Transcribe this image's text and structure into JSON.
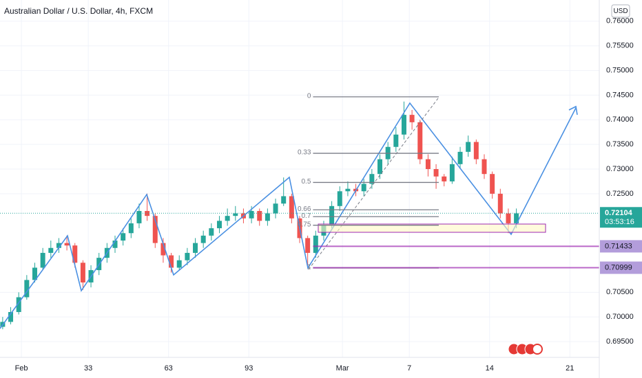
{
  "chart_data": {
    "type": "candlestick",
    "title": "Australian Dollar / U.S. Dollar, 4h, FXCM",
    "currency": "USD",
    "up_color": "#26a69a",
    "down_color": "#ef5350",
    "grid": true,
    "xlim": [
      0,
      224
    ],
    "ylim": [
      0.6918,
      0.7643
    ],
    "xticks": [
      {
        "value": 8,
        "label": "Feb"
      },
      33,
      63,
      93,
      {
        "value": 128,
        "label": "Mar"
      },
      {
        "value": 153,
        "label": "7"
      },
      {
        "value": 183,
        "label": "14"
      },
      {
        "value": 213,
        "label": "21"
      }
    ],
    "yticks": [
      {
        "value": 0.76,
        "label": "0.76000"
      },
      {
        "value": 0.755,
        "label": "0.75500"
      },
      {
        "value": 0.75,
        "label": "0.75000"
      },
      {
        "value": 0.745,
        "label": "0.74500"
      },
      {
        "value": 0.74,
        "label": "0.74000"
      },
      {
        "value": 0.735,
        "label": "0.73500"
      },
      {
        "value": 0.73,
        "label": "0.73000"
      },
      {
        "value": 0.725,
        "label": "0.72500"
      },
      {
        "value": 0.705,
        "label": "0.70500"
      },
      {
        "value": 0.7,
        "label": "0.70000"
      },
      {
        "value": 0.695,
        "label": "0.69500"
      }
    ],
    "candles": [
      [
        1,
        0.698,
        0.7,
        0.6975,
        0.699
      ],
      [
        4,
        0.699,
        0.702,
        0.6985,
        0.701
      ],
      [
        7,
        0.701,
        0.705,
        0.7005,
        0.704
      ],
      [
        10,
        0.704,
        0.7085,
        0.7035,
        0.7075
      ],
      [
        13,
        0.7075,
        0.711,
        0.707,
        0.71
      ],
      [
        16,
        0.71,
        0.714,
        0.7095,
        0.713
      ],
      [
        19,
        0.713,
        0.7155,
        0.712,
        0.714
      ],
      [
        22,
        0.714,
        0.716,
        0.713,
        0.715
      ],
      [
        25,
        0.715,
        0.7165,
        0.7135,
        0.7145
      ],
      [
        28,
        0.7145,
        0.715,
        0.71,
        0.711
      ],
      [
        31,
        0.711,
        0.7115,
        0.7055,
        0.707
      ],
      [
        34,
        0.707,
        0.7105,
        0.706,
        0.7095
      ],
      [
        37,
        0.7095,
        0.713,
        0.7085,
        0.712
      ],
      [
        40,
        0.712,
        0.715,
        0.711,
        0.714
      ],
      [
        43,
        0.714,
        0.7165,
        0.713,
        0.7155
      ],
      [
        46,
        0.7155,
        0.718,
        0.7145,
        0.717
      ],
      [
        49,
        0.717,
        0.72,
        0.716,
        0.719
      ],
      [
        52,
        0.719,
        0.723,
        0.718,
        0.7215
      ],
      [
        55,
        0.7215,
        0.725,
        0.7195,
        0.7205
      ],
      [
        58,
        0.7205,
        0.721,
        0.714,
        0.715
      ],
      [
        61,
        0.715,
        0.716,
        0.711,
        0.7125
      ],
      [
        64,
        0.7125,
        0.713,
        0.709,
        0.71
      ],
      [
        67,
        0.71,
        0.7125,
        0.7095,
        0.7115
      ],
      [
        70,
        0.7115,
        0.714,
        0.7105,
        0.713
      ],
      [
        73,
        0.713,
        0.716,
        0.712,
        0.715
      ],
      [
        76,
        0.715,
        0.7175,
        0.714,
        0.7165
      ],
      [
        79,
        0.7165,
        0.719,
        0.7155,
        0.718
      ],
      [
        82,
        0.718,
        0.7205,
        0.717,
        0.7195
      ],
      [
        85,
        0.7195,
        0.722,
        0.7185,
        0.7205
      ],
      [
        88,
        0.7205,
        0.7225,
        0.7195,
        0.721
      ],
      [
        91,
        0.721,
        0.722,
        0.719,
        0.72
      ],
      [
        94,
        0.72,
        0.7225,
        0.719,
        0.7215
      ],
      [
        97,
        0.7215,
        0.722,
        0.7185,
        0.7195
      ],
      [
        100,
        0.7195,
        0.722,
        0.7185,
        0.721
      ],
      [
        103,
        0.721,
        0.724,
        0.72,
        0.723
      ],
      [
        106,
        0.723,
        0.7283,
        0.7225,
        0.7245
      ],
      [
        109,
        0.7245,
        0.725,
        0.719,
        0.72
      ],
      [
        112,
        0.72,
        0.7205,
        0.715,
        0.716
      ],
      [
        115,
        0.716,
        0.7165,
        0.71,
        0.713
      ],
      [
        118,
        0.713,
        0.7175,
        0.712,
        0.7165
      ],
      [
        121,
        0.7165,
        0.7195,
        0.7155,
        0.7185
      ],
      [
        124,
        0.7185,
        0.7235,
        0.718,
        0.7225
      ],
      [
        127,
        0.7225,
        0.7265,
        0.7215,
        0.7255
      ],
      [
        130,
        0.7255,
        0.7275,
        0.7245,
        0.726
      ],
      [
        133,
        0.726,
        0.727,
        0.7245,
        0.7255
      ],
      [
        136,
        0.7255,
        0.728,
        0.7245,
        0.727
      ],
      [
        139,
        0.727,
        0.73,
        0.726,
        0.729
      ],
      [
        142,
        0.729,
        0.733,
        0.728,
        0.732
      ],
      [
        145,
        0.732,
        0.7355,
        0.731,
        0.7345
      ],
      [
        148,
        0.7345,
        0.7385,
        0.7335,
        0.737
      ],
      [
        151,
        0.737,
        0.7437,
        0.736,
        0.741
      ],
      [
        154,
        0.741,
        0.742,
        0.738,
        0.7395
      ],
      [
        157,
        0.7395,
        0.74,
        0.731,
        0.732
      ],
      [
        160,
        0.732,
        0.733,
        0.7285,
        0.73
      ],
      [
        163,
        0.73,
        0.731,
        0.726,
        0.7285
      ],
      [
        166,
        0.7285,
        0.729,
        0.7265,
        0.7275
      ],
      [
        169,
        0.7275,
        0.7325,
        0.727,
        0.731
      ],
      [
        172,
        0.731,
        0.7345,
        0.73,
        0.7335
      ],
      [
        175,
        0.7335,
        0.7368,
        0.7325,
        0.7355
      ],
      [
        178,
        0.7355,
        0.736,
        0.731,
        0.732
      ],
      [
        181,
        0.732,
        0.733,
        0.728,
        0.729
      ],
      [
        184,
        0.729,
        0.7295,
        0.724,
        0.725
      ],
      [
        187,
        0.725,
        0.726,
        0.72,
        0.721
      ],
      [
        190,
        0.721,
        0.722,
        0.717,
        0.719
      ],
      [
        193,
        0.719,
        0.722,
        0.718,
        0.721
      ]
    ],
    "fib": {
      "levels": [
        0,
        0.33,
        0.5,
        0.66,
        0.7,
        0.75,
        1
      ],
      "price_0": 0.74466,
      "price_1": 0.70993,
      "x_start": 117,
      "x_end": 164
    },
    "price_lines": [
      0.71433,
      0.70999
    ],
    "last_price": 0.72104,
    "countdown": "03:53:16"
  }
}
